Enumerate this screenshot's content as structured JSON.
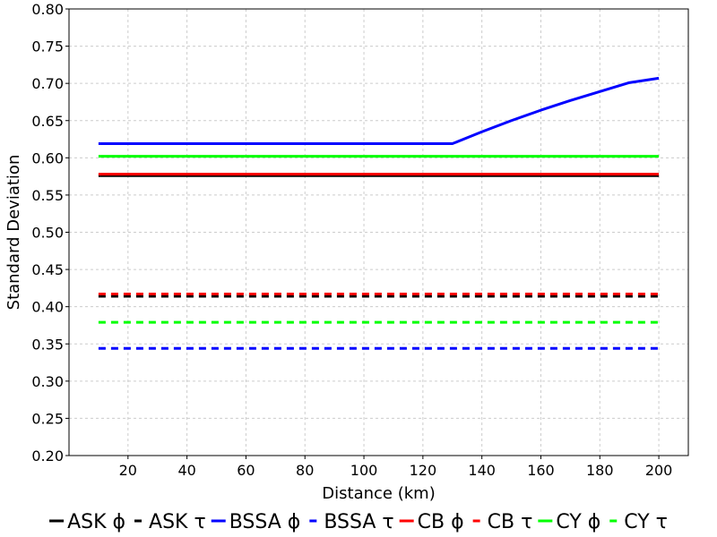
{
  "chart_data": {
    "type": "line",
    "title": "",
    "xlabel": "Distance (km)",
    "ylabel": "Standard Deviation",
    "xlim": [
      0,
      210
    ],
    "ylim": [
      0.2,
      0.8
    ],
    "xticks": [
      20,
      40,
      60,
      80,
      100,
      120,
      140,
      160,
      180,
      200
    ],
    "yticks": [
      0.2,
      0.25,
      0.3,
      0.35,
      0.4,
      0.45,
      0.5,
      0.55,
      0.6,
      0.65,
      0.7,
      0.75,
      0.8
    ],
    "xtick_labels": [
      "20",
      "40",
      "60",
      "80",
      "100",
      "120",
      "140",
      "160",
      "180",
      "200"
    ],
    "ytick_labels": [
      "0.20",
      "0.25",
      "0.30",
      "0.35",
      "0.40",
      "0.45",
      "0.50",
      "0.55",
      "0.60",
      "0.65",
      "0.70",
      "0.75",
      "0.80"
    ],
    "grid": true,
    "legend_position": "bottom",
    "series": [
      {
        "name": "ASK ϕ",
        "color": "#000000",
        "dash": "solid",
        "x": [
          10,
          200
        ],
        "y": [
          0.576,
          0.576
        ]
      },
      {
        "name": "ASK τ",
        "color": "#000000",
        "dash": "dashed",
        "x": [
          10,
          200
        ],
        "y": [
          0.414,
          0.414
        ]
      },
      {
        "name": "BSSA ϕ",
        "color": "#0000ff",
        "dash": "solid",
        "x": [
          10,
          130,
          140,
          150,
          160,
          170,
          180,
          190,
          200
        ],
        "y": [
          0.619,
          0.619,
          0.635,
          0.65,
          0.664,
          0.677,
          0.689,
          0.701,
          0.707
        ]
      },
      {
        "name": "BSSA τ",
        "color": "#0000ff",
        "dash": "dashed",
        "x": [
          10,
          200
        ],
        "y": [
          0.344,
          0.344
        ]
      },
      {
        "name": "CB ϕ",
        "color": "#ff0000",
        "dash": "solid",
        "x": [
          10,
          200
        ],
        "y": [
          0.578,
          0.578
        ]
      },
      {
        "name": "CB τ",
        "color": "#ff0000",
        "dash": "dashed",
        "x": [
          10,
          200
        ],
        "y": [
          0.417,
          0.417
        ]
      },
      {
        "name": "CY ϕ",
        "color": "#00ff00",
        "dash": "solid",
        "x": [
          10,
          200
        ],
        "y": [
          0.602,
          0.602
        ]
      },
      {
        "name": "CY τ",
        "color": "#00ff00",
        "dash": "dashed",
        "x": [
          10,
          200
        ],
        "y": [
          0.379,
          0.379
        ]
      }
    ]
  }
}
